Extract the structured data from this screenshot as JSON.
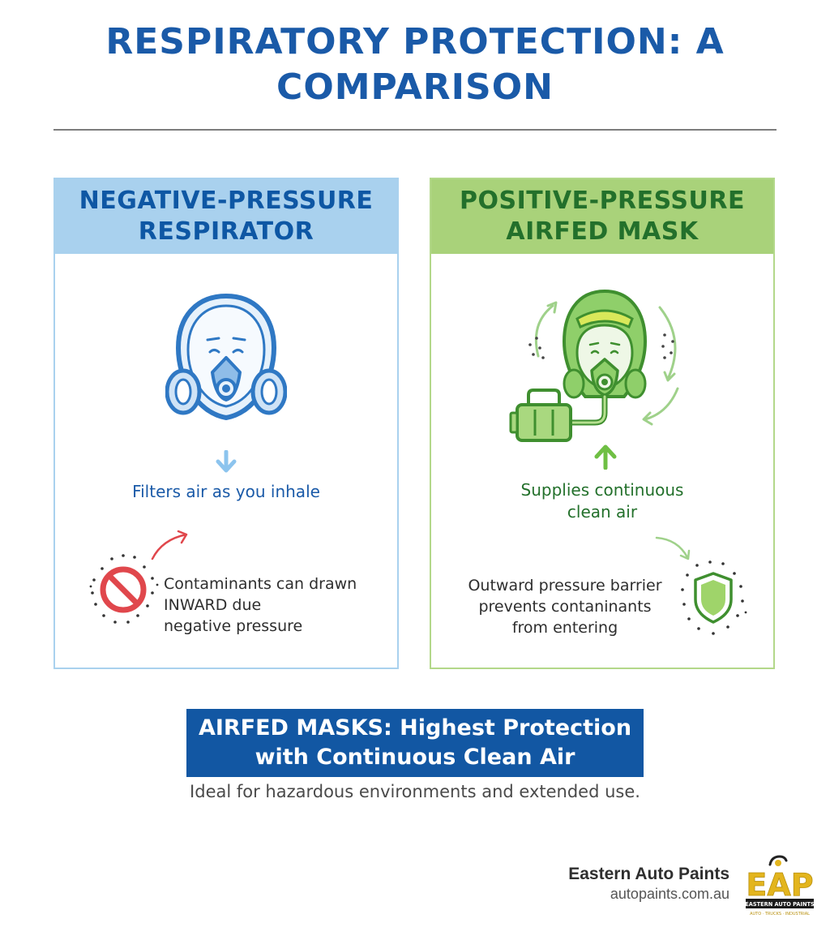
{
  "title": "RESPIRATORY PROTECTION:\nA COMPARISON",
  "panels": {
    "negative": {
      "heading": "NEGATIVE-PRESSURE\nRESPIRATOR",
      "caption": "Filters air as you inhale",
      "note": "Contaminants can drawn\nINWARD due\nnegative pressure"
    },
    "positive": {
      "heading": "POSITIVE-PRESSURE\nAIRFED MASK",
      "caption": "Supplies continuous\nclean air",
      "note": "Outward pressure barrier\nprevents contaninants\nfrom entering"
    }
  },
  "banner": "AIRFED MASKS: Highest Protection\nwith Continuous Clean Air",
  "tagline": "Ideal for hazardous environments and extended use.",
  "brand": {
    "name": "Eastern Auto Paints",
    "url": "autopaints.com.au",
    "logo_letters": "EAP",
    "logo_subtitle": "EASTERN AUTO PAINTS",
    "logo_tagline": "AUTO · TRUCKS · INDUSTRIAL"
  },
  "colors": {
    "title_blue": "#1a5aa8",
    "negative_header": "#a9d1ee",
    "positive_header": "#a9d27a",
    "banner_blue": "#1257a3",
    "logo_gold": "#e3b51e"
  }
}
